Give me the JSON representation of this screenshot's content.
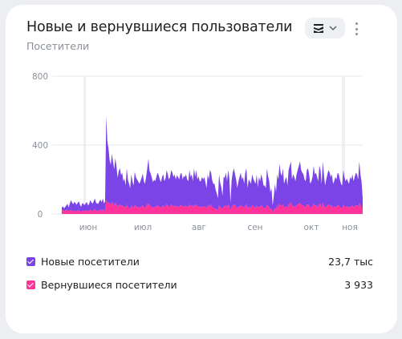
{
  "header": {
    "title": "Новые и вернувшиеся пользователи",
    "subtitle": "Посетители"
  },
  "controls": {
    "view_icon": "stacked-area-icon",
    "dropdown_icon": "chevron-down-icon",
    "more_icon": "more-vertical-icon"
  },
  "colors": {
    "new": "#7b44e6",
    "returning": "#ff3399",
    "grid": "#e6e8ec"
  },
  "legend": [
    {
      "label": "Новые посетители",
      "value": "23,7 тыс"
    },
    {
      "label": "Вернувшиеся посетители",
      "value": "3 933"
    }
  ],
  "chart_data": {
    "type": "area",
    "stacked": true,
    "y_ticks": [
      "800",
      "400",
      "0"
    ],
    "ylim": [
      0,
      800
    ],
    "x_labels": [
      "июн",
      "июл",
      "авг",
      "сен",
      "окт",
      "ноя"
    ],
    "grid": true,
    "series": [
      {
        "name": "Новые посетители",
        "values": [
          18,
          22,
          15,
          20,
          28,
          34,
          22,
          40,
          55,
          48,
          42,
          50,
          46,
          38,
          45,
          52,
          38,
          30,
          44,
          40,
          36,
          42,
          48,
          34,
          40,
          56,
          48,
          44,
          52,
          60,
          48,
          40,
          44,
          52,
          58,
          50,
          62,
          46,
          54,
          490,
          360,
          310,
          250,
          230,
          280,
          240,
          210,
          260,
          220,
          170,
          200,
          210,
          180,
          190,
          150,
          160,
          130,
          210,
          160,
          140,
          120,
          180,
          150,
          130,
          190,
          170,
          160,
          150,
          140,
          150,
          165,
          185,
          150,
          140,
          170,
          210,
          260,
          200,
          190,
          170,
          150,
          160,
          150,
          170,
          190,
          180,
          160,
          150,
          170,
          180,
          150,
          160,
          200,
          180,
          160,
          170,
          200,
          190,
          170,
          180,
          160,
          180,
          170,
          160,
          180,
          190,
          160,
          175,
          170,
          180,
          160,
          150,
          200,
          170,
          180,
          150,
          210,
          170,
          200,
          160,
          175,
          150,
          150,
          170,
          160,
          170,
          145,
          120,
          180,
          160,
          200,
          190,
          155,
          140,
          140,
          110,
          95,
          70,
          180,
          140,
          120,
          80,
          170,
          165,
          190,
          150,
          200,
          165,
          50,
          155,
          190,
          210,
          180,
          160,
          120,
          150,
          170,
          190,
          160,
          170,
          140,
          190,
          210,
          120,
          160,
          150,
          140,
          180,
          160,
          150,
          140,
          180,
          120,
          170,
          150,
          180,
          160,
          130,
          130,
          120,
          210,
          175,
          150,
          100,
          120,
          40,
          80,
          140,
          100,
          180,
          160,
          230,
          190,
          175,
          210,
          140,
          160,
          170,
          130,
          200,
          220,
          240,
          160,
          180,
          170,
          150,
          180,
          200,
          220,
          240,
          200,
          190,
          180,
          160,
          150,
          200,
          210,
          180,
          140,
          150,
          170,
          220,
          180,
          190,
          170,
          150,
          220,
          200,
          140,
          240,
          180,
          130,
          160,
          180,
          200,
          190,
          170,
          180,
          140,
          150,
          170,
          160,
          190,
          180,
          160,
          140,
          130,
          200,
          170,
          150,
          160,
          150,
          140,
          170,
          160,
          180,
          150,
          170,
          190,
          180,
          160,
          240,
          180,
          150,
          70
        ]
      },
      {
        "name": "Вернувшиеся посетители",
        "values": [
          20,
          22,
          18,
          20,
          22,
          25,
          15,
          20,
          25,
          18,
          15,
          20,
          18,
          15,
          20,
          22,
          15,
          12,
          20,
          18,
          15,
          20,
          22,
          15,
          18,
          25,
          20,
          15,
          22,
          30,
          18,
          20,
          15,
          22,
          25,
          18,
          28,
          15,
          20,
          80,
          60,
          70,
          60,
          55,
          70,
          60,
          50,
          65,
          55,
          40,
          50,
          55,
          45,
          50,
          40,
          45,
          35,
          55,
          40,
          35,
          30,
          50,
          40,
          35,
          55,
          45,
          40,
          40,
          35,
          40,
          45,
          50,
          40,
          35,
          45,
          55,
          60,
          50,
          45,
          40,
          35,
          40,
          40,
          45,
          50,
          45,
          40,
          35,
          45,
          50,
          40,
          45,
          55,
          50,
          40,
          45,
          55,
          50,
          45,
          50,
          40,
          45,
          45,
          40,
          50,
          50,
          40,
          45,
          45,
          50,
          40,
          40,
          55,
          45,
          50,
          40,
          55,
          45,
          55,
          40,
          45,
          40,
          40,
          45,
          40,
          45,
          40,
          30,
          50,
          40,
          55,
          50,
          40,
          35,
          35,
          30,
          25,
          20,
          50,
          40,
          35,
          25,
          45,
          45,
          50,
          40,
          55,
          45,
          15,
          40,
          50,
          55,
          50,
          40,
          30,
          40,
          45,
          50,
          40,
          45,
          35,
          50,
          55,
          30,
          40,
          40,
          35,
          50,
          45,
          40,
          35,
          50,
          35,
          45,
          40,
          50,
          45,
          35,
          35,
          30,
          55,
          45,
          40,
          25,
          30,
          10,
          20,
          35,
          25,
          50,
          40,
          60,
          50,
          45,
          55,
          35,
          40,
          45,
          35,
          55,
          60,
          65,
          40,
          50,
          45,
          40,
          50,
          55,
          60,
          65,
          55,
          50,
          50,
          40,
          40,
          55,
          55,
          50,
          35,
          40,
          45,
          60,
          50,
          50,
          45,
          40,
          60,
          55,
          35,
          65,
          50,
          35,
          40,
          50,
          55,
          50,
          45,
          50,
          35,
          40,
          45,
          40,
          50,
          50,
          40,
          35,
          35,
          55,
          45,
          40,
          45,
          40,
          35,
          45,
          40,
          50,
          40,
          45,
          50,
          50,
          40,
          65,
          50,
          40,
          20
        ]
      }
    ]
  }
}
